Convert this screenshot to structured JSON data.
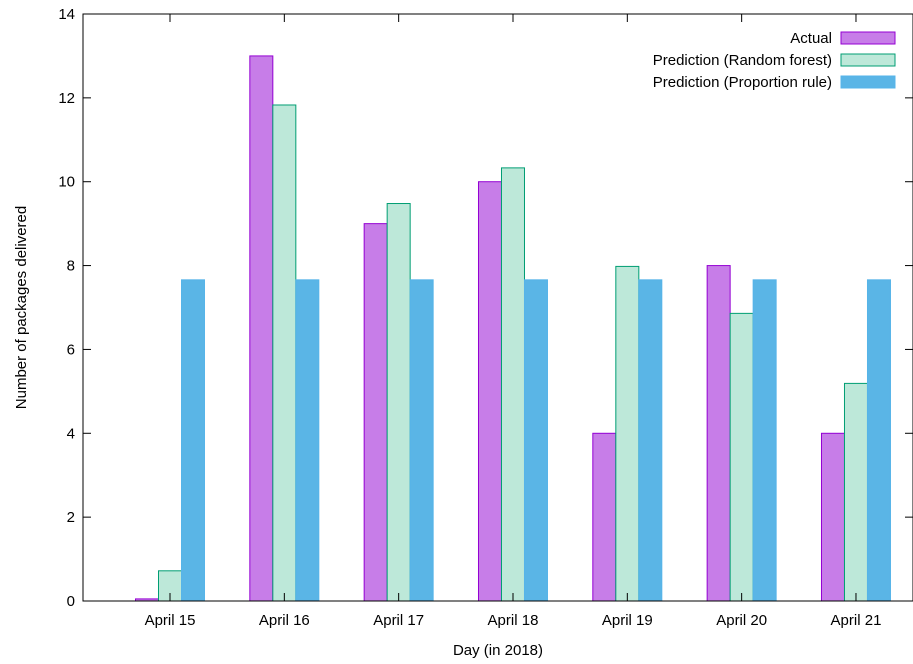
{
  "chart_data": {
    "type": "bar",
    "title": "",
    "xlabel": "Day (in 2018)",
    "ylabel": "Number of packages delivered",
    "ylim": [
      0,
      14
    ],
    "yticks": [
      0,
      2,
      4,
      6,
      8,
      10,
      12,
      14
    ],
    "grid": false,
    "legend_position": "top-right",
    "categories": [
      "April 15",
      "April 16",
      "April 17",
      "April 18",
      "April 19",
      "April 20",
      "April 21"
    ],
    "series": [
      {
        "name": "Actual",
        "fill": "#c77de8",
        "stroke": "#9400d3",
        "values": [
          0.05,
          13,
          9,
          10,
          4,
          8,
          4
        ]
      },
      {
        "name": "Prediction (Random forest)",
        "fill": "#bde8d9",
        "stroke": "#009e73",
        "values": [
          0.72,
          11.83,
          9.48,
          10.33,
          7.98,
          6.86,
          5.19
        ]
      },
      {
        "name": "Prediction (Proportion rule)",
        "fill": "#5ab5e6",
        "stroke": "#56b4e9",
        "values": [
          7.66,
          7.66,
          7.66,
          7.66,
          7.66,
          7.66,
          7.66
        ]
      }
    ]
  }
}
